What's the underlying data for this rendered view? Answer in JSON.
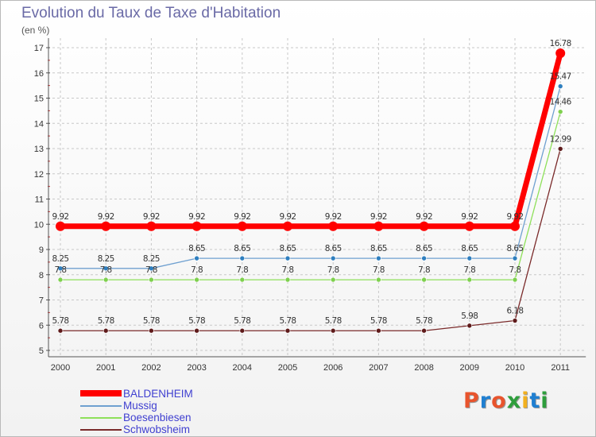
{
  "title": "Evolution du Taux de Taxe d'Habitation",
  "subtitle": "(en %)",
  "brand": "Proxiti",
  "colors": {
    "grid": "#c8c8c8",
    "axis": "#555555",
    "brand_letters": [
      "#e8542d",
      "#1f7fd1",
      "#e8542d",
      "#2e9e3c",
      "#f2b01e",
      "#1f7fd1",
      "#2e9e3c"
    ]
  },
  "chart_data": {
    "type": "line",
    "title": "Evolution du Taux de Taxe d'Habitation",
    "ylabel": "(en %)",
    "xlabel": "",
    "categories": [
      "2000",
      "2001",
      "2002",
      "2003",
      "2004",
      "2005",
      "2006",
      "2007",
      "2008",
      "2009",
      "2010",
      "2011"
    ],
    "ylim": [
      5,
      17
    ],
    "yticks": [
      5,
      6,
      7,
      8,
      9,
      10,
      11,
      12,
      13,
      14,
      15,
      16,
      17
    ],
    "grid": true,
    "legend_position": "bottom-left",
    "series": [
      {
        "name": "BALDENHEIM",
        "color": "#ff0000",
        "values": [
          9.92,
          9.92,
          9.92,
          9.92,
          9.92,
          9.92,
          9.92,
          9.92,
          9.92,
          9.92,
          9.92,
          16.78
        ],
        "labels": [
          "9.92",
          "9.92",
          "9.92",
          "9.92",
          "9.92",
          "9.92",
          "9.92",
          "9.92",
          "9.92",
          "9.92",
          "9.92",
          "16.78"
        ]
      },
      {
        "name": "Mussig",
        "color": "#6fa0d0",
        "marker": "#2f7fbf",
        "values": [
          8.25,
          8.25,
          8.25,
          8.65,
          8.65,
          8.65,
          8.65,
          8.65,
          8.65,
          8.65,
          8.65,
          15.47
        ],
        "labels": [
          "8.25",
          "8.25",
          "8.25",
          "8.65",
          "8.65",
          "8.65",
          "8.65",
          "8.65",
          "8.65",
          "8.65",
          "8.65",
          "15.47"
        ]
      },
      {
        "name": "Boesenbiesen",
        "color": "#8ee05a",
        "marker": "#7ed04e",
        "values": [
          7.8,
          7.8,
          7.8,
          7.8,
          7.8,
          7.8,
          7.8,
          7.8,
          7.8,
          7.8,
          7.8,
          14.46
        ],
        "labels": [
          "7.8",
          "7.8",
          "7.8",
          "7.8",
          "7.8",
          "7.8",
          "7.8",
          "7.8",
          "7.8",
          "7.8",
          "7.8",
          "14.46"
        ]
      },
      {
        "name": "Schwobsheim",
        "color": "#7a2a2a",
        "marker": "#5e1a1a",
        "values": [
          5.78,
          5.78,
          5.78,
          5.78,
          5.78,
          5.78,
          5.78,
          5.78,
          5.78,
          5.98,
          6.18,
          12.99
        ],
        "labels": [
          "5.78",
          "5.78",
          "5.78",
          "5.78",
          "5.78",
          "5.78",
          "5.78",
          "5.78",
          "5.78",
          "5.98",
          "6.18",
          "12.99"
        ]
      }
    ]
  }
}
